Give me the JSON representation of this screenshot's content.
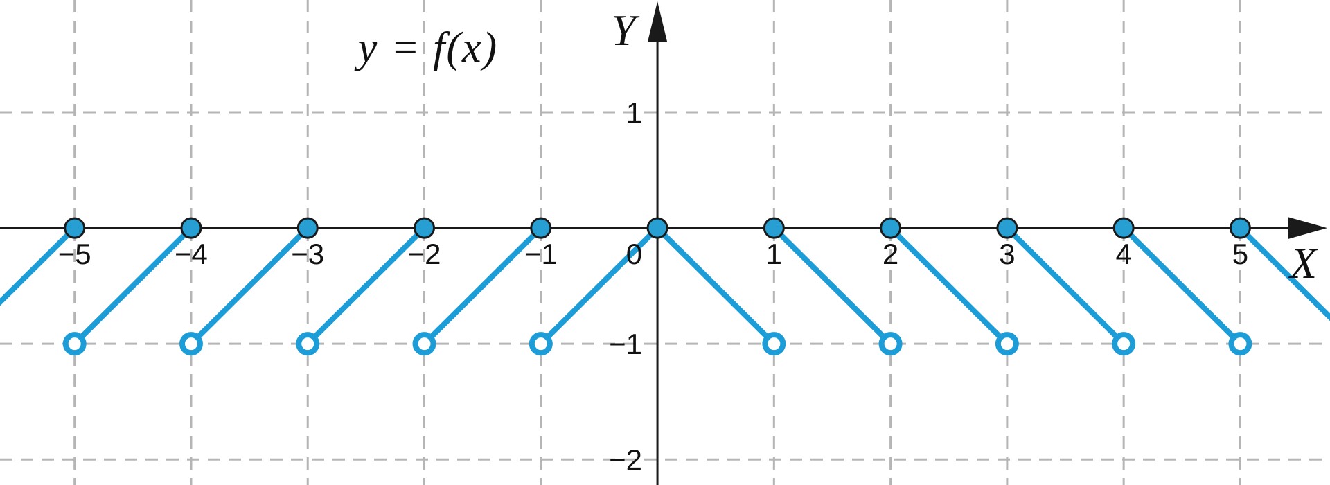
{
  "colors": {
    "accent_blue": "#1c9dd7",
    "dot_fill": "#289fd3",
    "axis": "#1a1a1a",
    "grid": "#b5b5b5",
    "label": "#111111",
    "background": "#ffffff"
  },
  "chart_data": {
    "type": "line",
    "title": "y = f(x)",
    "xlabel": "X",
    "ylabel": "Y",
    "origin_tick_label": "0",
    "xlim": [
      -5.64,
      5.77
    ],
    "ylim": [
      -2.22,
      1.97
    ],
    "grid": {
      "style": "dashed",
      "x_values": [
        -5,
        -4,
        -3,
        -2,
        -1,
        1,
        2,
        3,
        4,
        5
      ],
      "y_values": [
        1,
        -1,
        -2
      ]
    },
    "x_ticks": [
      {
        "v": -5,
        "label": "−5"
      },
      {
        "v": -4,
        "label": "−4"
      },
      {
        "v": -3,
        "label": "−3"
      },
      {
        "v": -2,
        "label": "−2"
      },
      {
        "v": -1,
        "label": "−1"
      },
      {
        "v": 1,
        "label": "1"
      },
      {
        "v": 2,
        "label": "2"
      },
      {
        "v": 3,
        "label": "3"
      },
      {
        "v": 4,
        "label": "4"
      },
      {
        "v": 5,
        "label": "5"
      }
    ],
    "y_ticks": [
      {
        "v": 1,
        "label": "1"
      },
      {
        "v": -1,
        "label": "−1"
      },
      {
        "v": -2,
        "label": "−2"
      }
    ],
    "segments": [
      {
        "x1": -6,
        "y1": -1,
        "x2": -5,
        "y2": 0
      },
      {
        "x1": -5,
        "y1": -1,
        "x2": -4,
        "y2": 0
      },
      {
        "x1": -4,
        "y1": -1,
        "x2": -3,
        "y2": 0
      },
      {
        "x1": -3,
        "y1": -1,
        "x2": -2,
        "y2": 0
      },
      {
        "x1": -2,
        "y1": -1,
        "x2": -1,
        "y2": 0
      },
      {
        "x1": -1,
        "y1": -1,
        "x2": 0,
        "y2": 0
      },
      {
        "x1": 0,
        "y1": 0,
        "x2": 1,
        "y2": -1
      },
      {
        "x1": 1,
        "y1": 0,
        "x2": 2,
        "y2": -1
      },
      {
        "x1": 2,
        "y1": 0,
        "x2": 3,
        "y2": -1
      },
      {
        "x1": 3,
        "y1": 0,
        "x2": 4,
        "y2": -1
      },
      {
        "x1": 4,
        "y1": 0,
        "x2": 5,
        "y2": -1
      },
      {
        "x1": 5,
        "y1": 0,
        "x2": 6,
        "y2": -1
      }
    ],
    "filled_points": [
      {
        "x": -5,
        "y": 0
      },
      {
        "x": -4,
        "y": 0
      },
      {
        "x": -3,
        "y": 0
      },
      {
        "x": -2,
        "y": 0
      },
      {
        "x": -1,
        "y": 0
      },
      {
        "x": 0,
        "y": 0
      },
      {
        "x": 1,
        "y": 0
      },
      {
        "x": 2,
        "y": 0
      },
      {
        "x": 3,
        "y": 0
      },
      {
        "x": 4,
        "y": 0
      },
      {
        "x": 5,
        "y": 0
      }
    ],
    "open_points": [
      {
        "x": -5,
        "y": -1
      },
      {
        "x": -4,
        "y": -1
      },
      {
        "x": -3,
        "y": -1
      },
      {
        "x": -2,
        "y": -1
      },
      {
        "x": -1,
        "y": -1
      },
      {
        "x": 1,
        "y": -1
      },
      {
        "x": 2,
        "y": -1
      },
      {
        "x": 3,
        "y": -1
      },
      {
        "x": 4,
        "y": -1
      },
      {
        "x": 5,
        "y": -1
      }
    ]
  }
}
